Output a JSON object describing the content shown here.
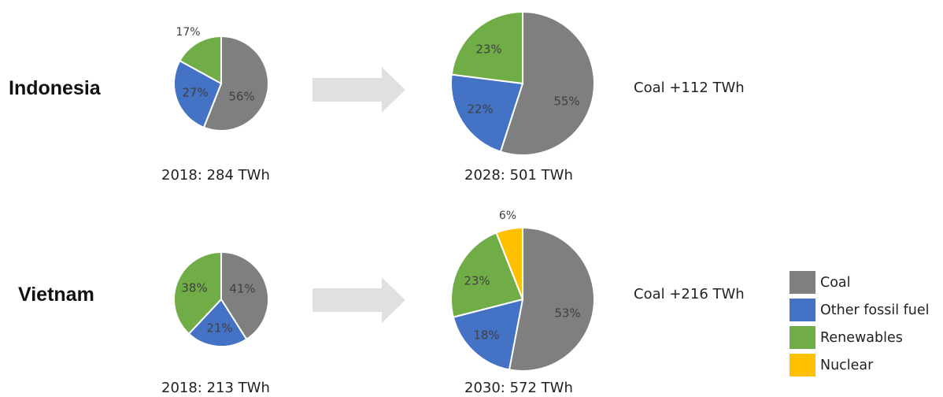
{
  "colors": {
    "Coal": "#7f7f7f",
    "Other fossil fuel": "#4472c4",
    "Renewables": "#70ad47",
    "Nuclear": "#ffc000",
    "arrow": "#e0e0e0",
    "label": "#404040"
  },
  "labels": {
    "indonesia": "Indonesia",
    "vietnam": "Vietnam",
    "ind_2018": "2018: 284 TWh",
    "ind_2028": "2028: 501 TWh",
    "vie_2018": "2018: 213 TWh",
    "vie_2030": "2030: 572 TWh",
    "ind_note": "Coal +112 TWh",
    "vie_note": "Coal +216 TWh"
  },
  "legend": [
    {
      "label": "Coal",
      "color": "#7f7f7f"
    },
    {
      "label": "Other fossil fuel",
      "color": "#4472c4"
    },
    {
      "label": "Renewables",
      "color": "#70ad47"
    },
    {
      "label": "Nuclear",
      "color": "#ffc000"
    }
  ],
  "chart_data": [
    {
      "type": "pie",
      "country": "Indonesia",
      "year": 2018,
      "total": "284 TWh",
      "slices": [
        {
          "category": "Coal",
          "value": 56,
          "label": "56%"
        },
        {
          "category": "Other fossil fuel",
          "value": 27,
          "label": "27%"
        },
        {
          "category": "Renewables",
          "value": 17,
          "label": "17%"
        }
      ]
    },
    {
      "type": "pie",
      "country": "Indonesia",
      "year": 2028,
      "total": "501 TWh",
      "slices": [
        {
          "category": "Coal",
          "value": 55,
          "label": "55%"
        },
        {
          "category": "Other fossil fuel",
          "value": 22,
          "label": "22%"
        },
        {
          "category": "Renewables",
          "value": 23,
          "label": "23%"
        }
      ]
    },
    {
      "type": "pie",
      "country": "Vietnam",
      "year": 2018,
      "total": "213 TWh",
      "slices": [
        {
          "category": "Coal",
          "value": 41,
          "label": "41%"
        },
        {
          "category": "Other fossil fuel",
          "value": 21,
          "label": "21%"
        },
        {
          "category": "Renewables",
          "value": 38,
          "label": "38%"
        }
      ]
    },
    {
      "type": "pie",
      "country": "Vietnam",
      "year": 2030,
      "total": "572 TWh",
      "slices": [
        {
          "category": "Coal",
          "value": 53,
          "label": "53%"
        },
        {
          "category": "Other fossil fuel",
          "value": 18,
          "label": "18%"
        },
        {
          "category": "Renewables",
          "value": 23,
          "label": "23%"
        },
        {
          "category": "Nuclear",
          "value": 6,
          "label": "6%"
        }
      ]
    }
  ]
}
